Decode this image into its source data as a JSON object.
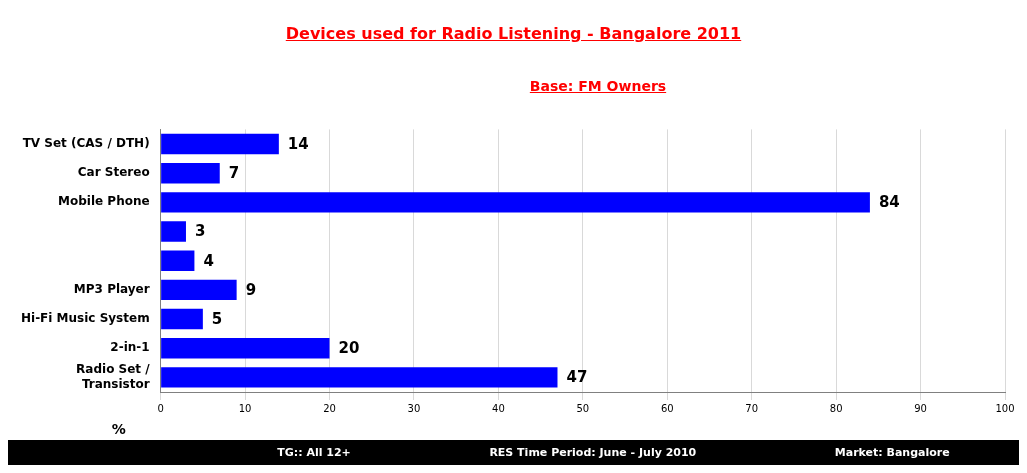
{
  "chart_data": {
    "type": "bar",
    "orientation": "horizontal",
    "title": "Devices used for Radio Listening - Bangalore 2011",
    "subtitle": "Base: FM Owners",
    "xlabel": "%",
    "categories": [
      "TV Set (CAS / DTH)",
      "Car Stereo",
      "Mobile Phone",
      null,
      null,
      "MP3 Player",
      "Hi-Fi Music System",
      "2-in-1",
      "Radio Set / Transistor"
    ],
    "values": [
      14,
      7,
      84,
      3,
      4,
      9,
      5,
      20,
      47
    ],
    "color": "#0000ff",
    "data_labels": true,
    "xlim": [
      0,
      100
    ],
    "xticks": [
      0,
      10,
      20,
      30,
      40,
      50,
      60,
      70,
      80,
      90,
      100
    ],
    "grid": "x",
    "legend": false,
    "annotations": [
      "TG:: All 12+",
      "RES Time Period: June - July 2010",
      "Market: Bangalore"
    ]
  }
}
